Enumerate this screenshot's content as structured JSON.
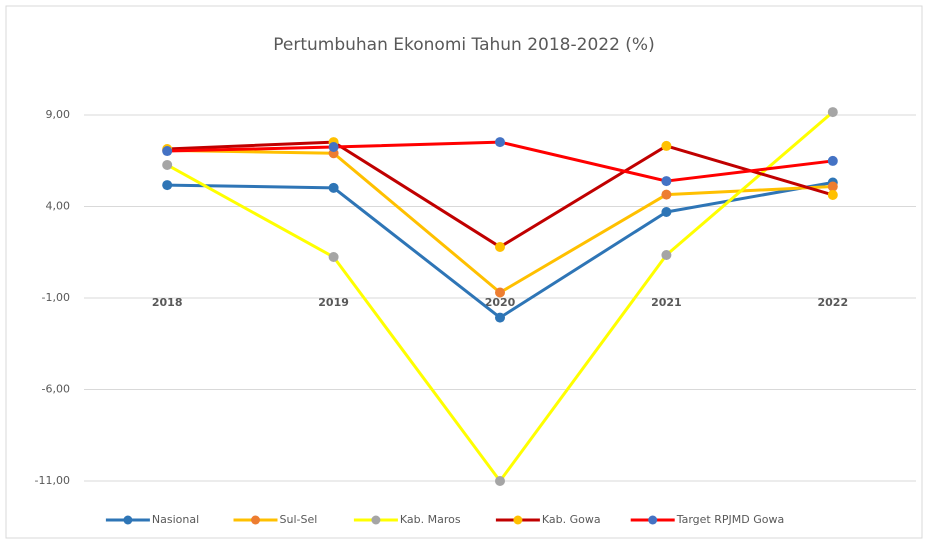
{
  "chart_data": {
    "type": "line",
    "title": "Pertumbuhan Ekonomi Tahun 2018-2022 (%)",
    "categories": [
      "2018",
      "2019",
      "2020",
      "2021",
      "2022"
    ],
    "series": [
      {
        "name": "Nasional",
        "color": "#2e75b6",
        "marker_color": "#2e75b6",
        "values": [
          5.17,
          5.02,
          -2.07,
          3.7,
          5.31
        ]
      },
      {
        "name": "Sul-Sel",
        "color": "#ffc000",
        "marker_color": "#ed7d31",
        "values": [
          7.07,
          6.91,
          -0.7,
          4.65,
          5.09
        ]
      },
      {
        "name": "Kab. Maros",
        "color": "#ffff00",
        "marker_color": "#a5a5a5",
        "values": [
          6.27,
          1.24,
          -11.0,
          1.35,
          9.16
        ]
      },
      {
        "name": "Kab. Gowa",
        "color": "#c00000",
        "marker_color": "#ffc000",
        "values": [
          7.14,
          7.52,
          1.79,
          7.31,
          4.63
        ]
      },
      {
        "name": "Target RPJMD Gowa",
        "color": "#ff0000",
        "marker_color": "#4472c4",
        "values": [
          7.03,
          7.25,
          7.52,
          5.39,
          6.49
        ]
      }
    ],
    "ylim": [
      -11,
      9
    ],
    "yticks": [
      {
        "value": -11,
        "label": "-11,00"
      },
      {
        "value": -6,
        "label": "-6,00"
      },
      {
        "value": -1,
        "label": "-1,00"
      },
      {
        "value": 4,
        "label": "4,00"
      },
      {
        "value": 9,
        "label": "9,00"
      }
    ],
    "grid": true,
    "legend": "bottom"
  }
}
